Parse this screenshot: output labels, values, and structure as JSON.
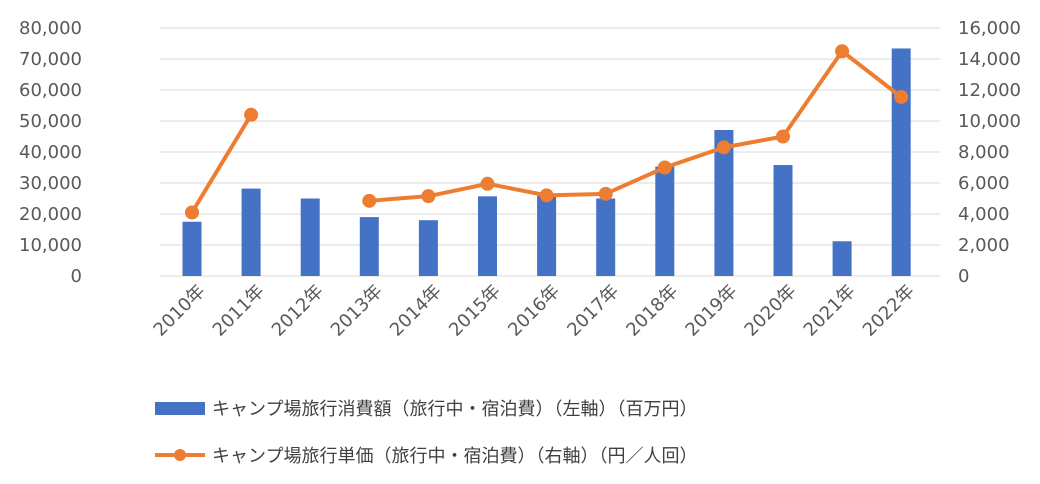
{
  "chart_data": {
    "type": "bar",
    "categories": [
      "2010年",
      "2011年",
      "2012年",
      "2013年",
      "2014年",
      "2015年",
      "2016年",
      "2017年",
      "2018年",
      "2019年",
      "2020年",
      "2021年",
      "2022年"
    ],
    "series": [
      {
        "name": "キャンプ場旅行消費額（旅行中・宿泊費）（左軸）（百万円）",
        "type": "bar",
        "axis": "left",
        "color": "#4472C4",
        "values": [
          17500,
          28200,
          25000,
          19000,
          18000,
          25700,
          25900,
          25000,
          35300,
          47100,
          35800,
          11200,
          73400
        ]
      },
      {
        "name": "キャンプ場旅行単価（旅行中・宿泊費）（右軸）（円／人回）",
        "type": "line",
        "axis": "right",
        "color": "#ED7D31",
        "segments": [
          [
            0,
            1
          ],
          [
            3,
            12
          ]
        ],
        "values": [
          4100,
          10400,
          null,
          4850,
          5150,
          5950,
          5200,
          5300,
          7000,
          8300,
          9000,
          14500,
          11550
        ]
      }
    ],
    "y_left": {
      "ylim": [
        0,
        80000
      ],
      "ticks": [
        "0",
        "10,000",
        "20,000",
        "30,000",
        "40,000",
        "50,000",
        "60,000",
        "70,000",
        "80,000"
      ]
    },
    "y_right": {
      "ylim": [
        0,
        16000
      ],
      "ticks": [
        "0",
        "2,000",
        "4,000",
        "6,000",
        "8,000",
        "10,000",
        "12,000",
        "14,000",
        "16,000"
      ]
    },
    "grid": true,
    "legend_position": "bottom"
  }
}
